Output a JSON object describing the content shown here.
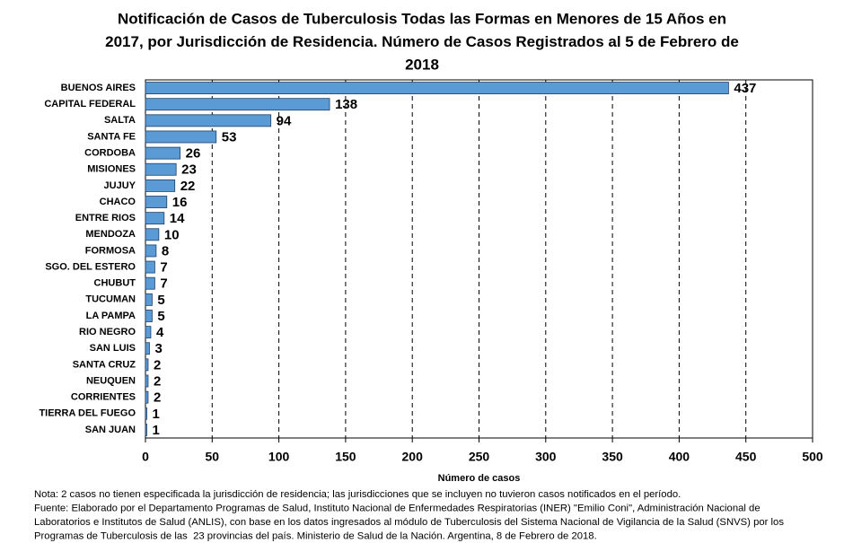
{
  "chart_data": {
    "type": "barh",
    "title": [
      "Notificación de Casos de Tuberculosis Todas las Formas en Menores de 15 Años en",
      "2017, por Jurisdicción de Residencia. Número de Casos Registrados al 5 de Febrero de",
      "2018"
    ],
    "categories": [
      "BUENOS AIRES",
      "CAPITAL FEDERAL",
      "SALTA",
      "SANTA FE",
      "CORDOBA",
      "MISIONES",
      "JUJUY",
      "CHACO",
      "ENTRE RIOS",
      "MENDOZA",
      "FORMOSA",
      "SGO. DEL ESTERO",
      "CHUBUT",
      "TUCUMAN",
      "LA PAMPA",
      "RIO NEGRO",
      "SAN LUIS",
      "SANTA CRUZ",
      "NEUQUEN",
      "CORRIENTES",
      "TIERRA DEL FUEGO",
      "SAN JUAN"
    ],
    "values": [
      437,
      138,
      94,
      53,
      26,
      23,
      22,
      16,
      14,
      10,
      8,
      7,
      7,
      5,
      5,
      4,
      3,
      2,
      2,
      2,
      1,
      1
    ],
    "color": "#5b9bd5",
    "xlim": [
      0,
      500
    ],
    "xticks": [
      0,
      50,
      100,
      150,
      200,
      250,
      300,
      350,
      400,
      450,
      500
    ],
    "xlabel": "Número de casos",
    "grid": true,
    "notes": [
      "Nota: 2 casos no tienen especificada la jurisdicción de residencia; las jurisdicciones que se incluyen no tuvieron casos notificados en el período.",
      "Fuente: Elaborado por el Departamento Programas de Salud, Instituto Nacional de Enfermedades Respiratorias (INER) \"Emilio Coni\", Administración Nacional de",
      "Laboratorios e Institutos de Salud (ANLIS), con base en los datos ingresados al módulo de Tuberculosis del Sistema Nacional de Vigilancia de la Salud (SNVS) por los",
      "Programas de Tuberculosis de las  23 provincias del país. Ministerio de Salud de la Nación. Argentina, 8 de Febrero de 2018."
    ]
  }
}
